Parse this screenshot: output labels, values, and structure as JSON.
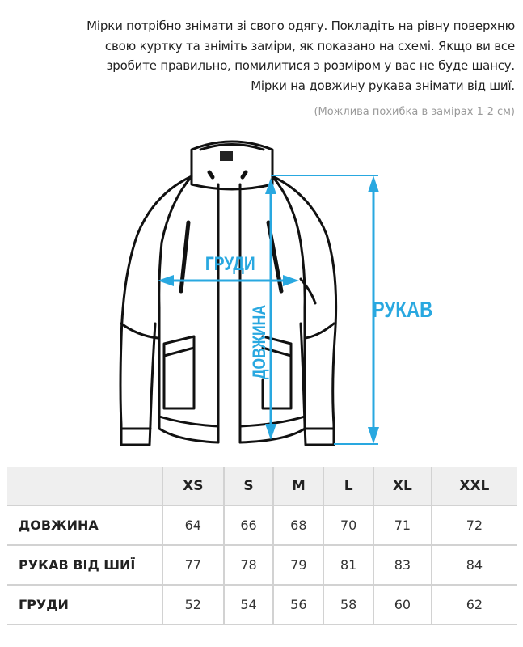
{
  "intro": {
    "lines": [
      "Мірки потрібно знімати зі свого одягу. Покладіть на рівну поверхню",
      "свою куртку та зніміть заміри, як показано на схемі. Якщо ви все",
      "зробите правильно, помилитися з розміром у вас не буде шансу.",
      "Мірки на довжину рукава знімати від шиї."
    ],
    "note": "(Можлива похибка в замірах 1-2 см)"
  },
  "diagram": {
    "accent_color": "#29a8e0",
    "labels": {
      "chest": "ГРУДИ",
      "length": "ДОВЖИНА",
      "sleeve": "РУКАВ"
    }
  },
  "size_table": {
    "headers": [
      "",
      "XS",
      "S",
      "M",
      "L",
      "XL",
      "XXL"
    ],
    "rows": [
      {
        "label": "ДОВЖИНА",
        "values": [
          "64",
          "66",
          "68",
          "70",
          "71",
          "72"
        ]
      },
      {
        "label": "РУКАВ ВІД ШИЇ",
        "values": [
          "77",
          "78",
          "79",
          "81",
          "83",
          "84"
        ]
      },
      {
        "label": "ГРУДИ",
        "values": [
          "52",
          "54",
          "56",
          "58",
          "60",
          "62"
        ]
      }
    ]
  }
}
